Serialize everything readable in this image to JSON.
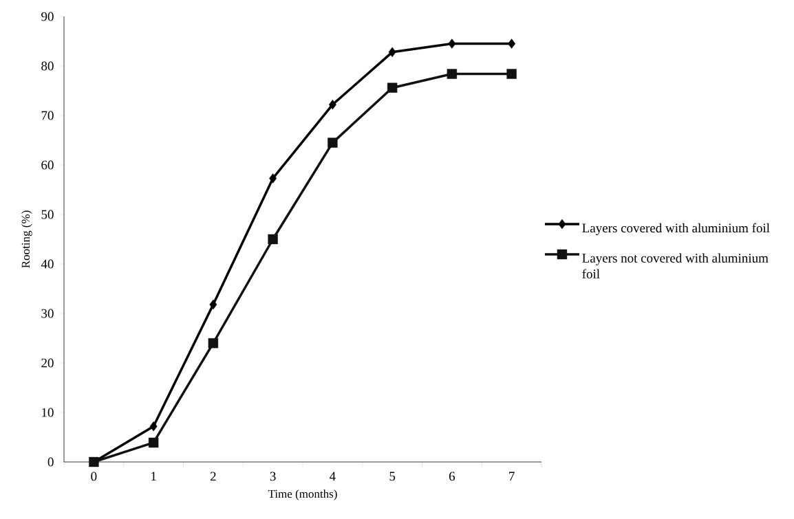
{
  "chart_data": {
    "type": "line",
    "xlabel": "Time (months)",
    "ylabel": "Rooting (%)",
    "categories": [
      "0",
      "1",
      "2",
      "3",
      "4",
      "5",
      "6",
      "7"
    ],
    "series": [
      {
        "name": "Layers covered with aluminium foil",
        "color": "#000000",
        "marker": "diamond",
        "values": [
          0,
          7.2,
          31.8,
          57.3,
          72.2,
          82.8,
          84.5,
          84.5
        ]
      },
      {
        "name": " Layers not covered with aluminium foil",
        "color": "#111111",
        "marker": "square",
        "values": [
          0,
          3.9,
          24.0,
          45.0,
          64.5,
          75.6,
          78.4,
          78.4
        ]
      }
    ],
    "ylim": [
      0,
      90
    ],
    "yticks": [
      0,
      10,
      20,
      30,
      40,
      50,
      60,
      70,
      80,
      90
    ],
    "grid": false,
    "legend": "right",
    "line_style": "solid"
  }
}
